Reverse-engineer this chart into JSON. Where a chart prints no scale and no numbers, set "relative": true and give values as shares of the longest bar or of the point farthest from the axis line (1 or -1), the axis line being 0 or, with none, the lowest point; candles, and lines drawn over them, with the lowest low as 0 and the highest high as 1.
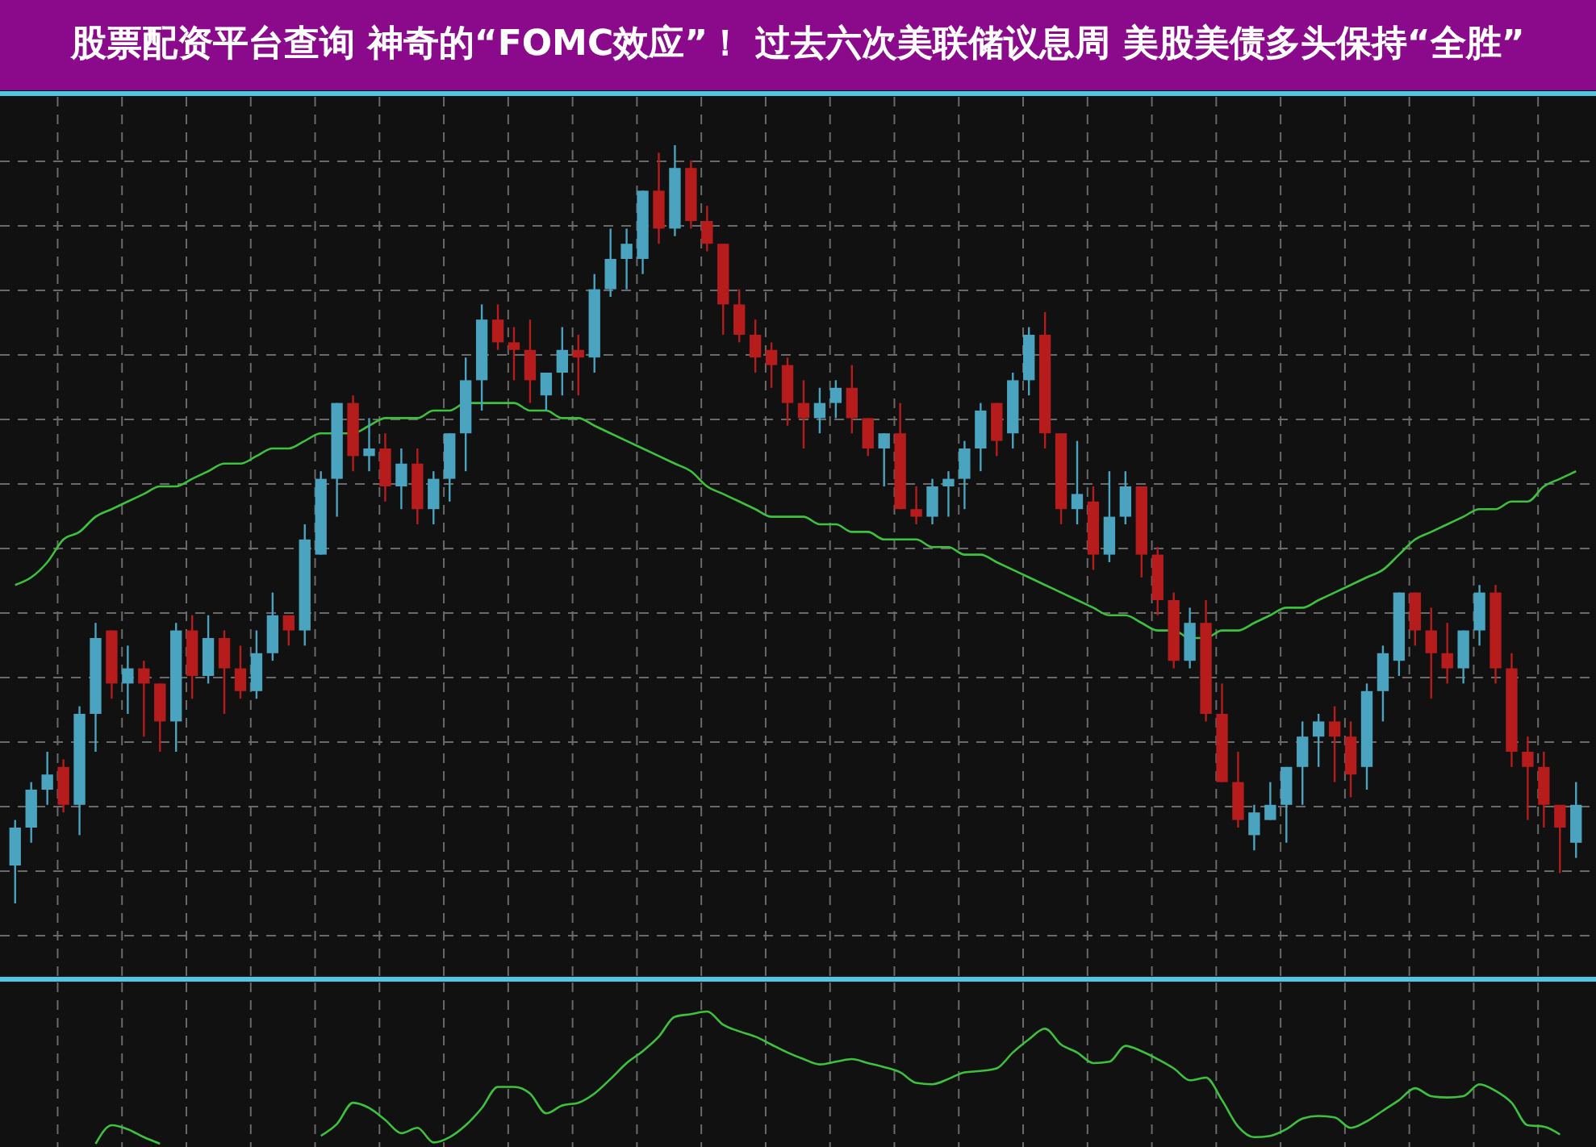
{
  "chart_data": [
    {
      "type": "candlestick",
      "title": "股票配资平台查询 神奇的“FOMC效应”！ 过去六次美联储议息周 美股美债多头保持“全胜”",
      "relative": true,
      "grid": true,
      "categories": [
        null,
        null,
        null,
        null,
        null,
        null,
        null,
        null,
        null,
        null,
        null,
        null,
        null,
        null,
        null,
        null,
        null,
        null,
        null,
        null,
        null,
        null,
        null,
        null,
        null,
        null,
        null,
        null,
        null,
        null,
        null,
        null,
        null,
        null,
        null,
        null,
        null,
        null,
        null,
        null,
        null,
        null,
        null,
        null,
        null,
        null,
        null,
        null,
        null,
        null,
        null,
        null,
        null,
        null,
        null,
        null,
        null,
        null,
        null,
        null,
        null,
        null,
        null,
        null,
        null,
        null,
        null,
        null,
        null,
        null,
        null,
        null,
        null,
        null,
        null,
        null,
        null,
        null,
        null,
        null,
        null,
        null,
        null,
        null,
        null,
        null,
        null,
        null,
        null,
        null,
        null,
        null,
        null,
        null,
        null,
        null,
        null,
        null
      ],
      "ohlc": [
        [
          0.05,
          0.11,
          0,
          0.1
        ],
        [
          0.1,
          0.16,
          0.08,
          0.15
        ],
        [
          0.15,
          0.2,
          0.13,
          0.17
        ],
        [
          0.18,
          0.19,
          0.12,
          0.13
        ],
        [
          0.13,
          0.26,
          0.09,
          0.25
        ],
        [
          0.25,
          0.37,
          0.2,
          0.35
        ],
        [
          0.36,
          0.36,
          0.27,
          0.29
        ],
        [
          0.29,
          0.34,
          0.25,
          0.31
        ],
        [
          0.31,
          0.32,
          0.22,
          0.29
        ],
        [
          0.29,
          0.29,
          0.2,
          0.24
        ],
        [
          0.24,
          0.37,
          0.2,
          0.36
        ],
        [
          0.36,
          0.38,
          0.27,
          0.3
        ],
        [
          0.3,
          0.38,
          0.29,
          0.35
        ],
        [
          0.35,
          0.36,
          0.25,
          0.31
        ],
        [
          0.31,
          0.34,
          0.27,
          0.28
        ],
        [
          0.28,
          0.36,
          0.27,
          0.33
        ],
        [
          0.33,
          0.41,
          0.32,
          0.38
        ],
        [
          0.38,
          0.38,
          0.34,
          0.36
        ],
        [
          0.36,
          0.5,
          0.34,
          0.48
        ],
        [
          0.46,
          0.57,
          0.46,
          0.56
        ],
        [
          0.56,
          0.66,
          0.51,
          0.66
        ],
        [
          0.66,
          0.67,
          0.57,
          0.59
        ],
        [
          0.59,
          0.64,
          0.57,
          0.6
        ],
        [
          0.6,
          0.62,
          0.53,
          0.55
        ],
        [
          0.55,
          0.6,
          0.52,
          0.58
        ],
        [
          0.58,
          0.6,
          0.5,
          0.52
        ],
        [
          0.52,
          0.57,
          0.5,
          0.56
        ],
        [
          0.56,
          0.62,
          0.53,
          0.62
        ],
        [
          0.62,
          0.72,
          0.57,
          0.69
        ],
        [
          0.69,
          0.79,
          0.65,
          0.77
        ],
        [
          0.77,
          0.79,
          0.73,
          0.74
        ],
        [
          0.74,
          0.76,
          0.69,
          0.73
        ],
        [
          0.73,
          0.77,
          0.66,
          0.69
        ],
        [
          0.67,
          0.7,
          0.65,
          0.7
        ],
        [
          0.7,
          0.76,
          0.67,
          0.73
        ],
        [
          0.73,
          0.75,
          0.67,
          0.72
        ],
        [
          0.72,
          0.83,
          0.7,
          0.81
        ],
        [
          0.81,
          0.89,
          0.8,
          0.85
        ],
        [
          0.85,
          0.89,
          0.81,
          0.87
        ],
        [
          0.85,
          0.94,
          0.83,
          0.94
        ],
        [
          0.94,
          0.99,
          0.87,
          0.89
        ],
        [
          0.89,
          1,
          0.88,
          0.97
        ],
        [
          0.97,
          0.98,
          0.89,
          0.9
        ],
        [
          0.9,
          0.92,
          0.86,
          0.87
        ],
        [
          0.87,
          0.87,
          0.75,
          0.79
        ],
        [
          0.79,
          0.81,
          0.74,
          0.75
        ],
        [
          0.75,
          0.77,
          0.7,
          0.72
        ],
        [
          0.73,
          0.74,
          0.68,
          0.71
        ],
        [
          0.71,
          0.72,
          0.63,
          0.66
        ],
        [
          0.66,
          0.69,
          0.6,
          0.64
        ],
        [
          0.64,
          0.68,
          0.62,
          0.66
        ],
        [
          0.66,
          0.69,
          0.64,
          0.68
        ],
        [
          0.68,
          0.71,
          0.62,
          0.64
        ],
        [
          0.64,
          0.64,
          0.59,
          0.6
        ],
        [
          0.6,
          0.62,
          0.55,
          0.62
        ],
        [
          0.62,
          0.66,
          0.52,
          0.52
        ],
        [
          0.52,
          0.55,
          0.5,
          0.51
        ],
        [
          0.51,
          0.56,
          0.5,
          0.55
        ],
        [
          0.55,
          0.57,
          0.51,
          0.56
        ],
        [
          0.56,
          0.61,
          0.52,
          0.6
        ],
        [
          0.6,
          0.66,
          0.57,
          0.65
        ],
        [
          0.66,
          0.66,
          0.59,
          0.61
        ],
        [
          0.62,
          0.7,
          0.6,
          0.69
        ],
        [
          0.69,
          0.76,
          0.67,
          0.75
        ],
        [
          0.75,
          0.78,
          0.6,
          0.62
        ],
        [
          0.62,
          0.62,
          0.5,
          0.52
        ],
        [
          0.52,
          0.61,
          0.5,
          0.54
        ],
        [
          0.53,
          0.55,
          0.44,
          0.46
        ],
        [
          0.46,
          0.57,
          0.45,
          0.51
        ],
        [
          0.51,
          0.57,
          0.5,
          0.55
        ],
        [
          0.55,
          0.55,
          0.43,
          0.46
        ],
        [
          0.46,
          0.47,
          0.38,
          0.4
        ],
        [
          0.4,
          0.41,
          0.31,
          0.32
        ],
        [
          0.32,
          0.39,
          0.31,
          0.37
        ],
        [
          0.37,
          0.4,
          0.24,
          0.25
        ],
        [
          0.25,
          0.29,
          0.16,
          0.16
        ],
        [
          0.16,
          0.2,
          0.1,
          0.11
        ],
        [
          0.09,
          0.13,
          0.07,
          0.12
        ],
        [
          0.11,
          0.16,
          0.11,
          0.13
        ],
        [
          0.13,
          0.18,
          0.08,
          0.18
        ],
        [
          0.18,
          0.24,
          0.13,
          0.22
        ],
        [
          0.22,
          0.25,
          0.18,
          0.24
        ],
        [
          0.24,
          0.26,
          0.16,
          0.22
        ],
        [
          0.22,
          0.24,
          0.14,
          0.17
        ],
        [
          0.18,
          0.29,
          0.15,
          0.28
        ],
        [
          0.28,
          0.34,
          0.24,
          0.33
        ],
        [
          0.32,
          0.41,
          0.3,
          0.41
        ],
        [
          0.41,
          0.41,
          0.34,
          0.36
        ],
        [
          0.36,
          0.39,
          0.27,
          0.33
        ],
        [
          0.33,
          0.37,
          0.29,
          0.31
        ],
        [
          0.31,
          0.36,
          0.29,
          0.36
        ],
        [
          0.36,
          0.42,
          0.34,
          0.41
        ],
        [
          0.41,
          0.42,
          0.29,
          0.31
        ],
        [
          0.31,
          0.33,
          0.18,
          0.2
        ],
        [
          0.2,
          0.22,
          0.11,
          0.18
        ],
        [
          0.18,
          0.2,
          0.1,
          0.13
        ],
        [
          0.13,
          0.13,
          0.04,
          0.1
        ],
        [
          0.08,
          0.16,
          0.06,
          0.13
        ]
      ],
      "colors": [
        "#4aa3bf",
        "#4aa3bf",
        "#4aa3bf",
        "#b71c1c",
        "#4aa3bf",
        "#4aa3bf",
        "#b71c1c",
        "#4aa3bf",
        "#b71c1c",
        "#b71c1c",
        "#4aa3bf",
        "#b71c1c",
        "#4aa3bf",
        "#b71c1c",
        "#b71c1c",
        "#4aa3bf",
        "#4aa3bf",
        "#b71c1c",
        "#4aa3bf",
        "#4aa3bf",
        "#4aa3bf",
        "#b71c1c",
        "#4aa3bf",
        "#b71c1c",
        "#4aa3bf",
        "#b71c1c",
        "#4aa3bf",
        "#4aa3bf",
        "#4aa3bf",
        "#4aa3bf",
        "#b71c1c",
        "#b71c1c",
        "#b71c1c",
        "#4aa3bf",
        "#4aa3bf",
        "#b71c1c",
        "#4aa3bf",
        "#4aa3bf",
        "#4aa3bf",
        "#4aa3bf",
        "#b71c1c",
        "#4aa3bf",
        "#b71c1c",
        "#b71c1c",
        "#b71c1c",
        "#b71c1c",
        "#b71c1c",
        "#b71c1c",
        "#b71c1c",
        "#b71c1c",
        "#4aa3bf",
        "#4aa3bf",
        "#b71c1c",
        "#b71c1c",
        "#4aa3bf",
        "#b71c1c",
        "#b71c1c",
        "#4aa3bf",
        "#4aa3bf",
        "#4aa3bf",
        "#4aa3bf",
        "#b71c1c",
        "#4aa3bf",
        "#4aa3bf",
        "#b71c1c",
        "#b71c1c",
        "#4aa3bf",
        "#b71c1c",
        "#4aa3bf",
        "#4aa3bf",
        "#b71c1c",
        "#b71c1c",
        "#b71c1c",
        "#4aa3bf",
        "#b71c1c",
        "#b71c1c",
        "#b71c1c",
        "#4aa3bf",
        "#4aa3bf",
        "#4aa3bf",
        "#4aa3bf",
        "#4aa3bf",
        "#b71c1c",
        "#b71c1c",
        "#4aa3bf",
        "#4aa3bf",
        "#4aa3bf",
        "#b71c1c",
        "#b71c1c",
        "#b71c1c",
        "#4aa3bf",
        "#4aa3bf",
        "#b71c1c",
        "#b71c1c",
        "#b71c1c",
        "#b71c1c",
        "#b71c1c",
        "#4aa3bf"
      ],
      "series": [
        {
          "type": "line",
          "color": "#3cc23c",
          "values": [
            0.42,
            0.43,
            0.45,
            0.48,
            0.49,
            0.51,
            0.52,
            0.53,
            0.54,
            0.55,
            0.55,
            0.56,
            0.57,
            0.58,
            0.58,
            0.59,
            0.6,
            0.6,
            0.61,
            0.62,
            0.62,
            0.62,
            0.63,
            0.64,
            0.64,
            0.64,
            0.65,
            0.65,
            0.66,
            0.66,
            0.66,
            0.66,
            0.65,
            0.65,
            0.64,
            0.64,
            0.63,
            0.62,
            0.61,
            0.6,
            0.59,
            0.58,
            0.57,
            0.55,
            0.54,
            0.53,
            0.52,
            0.51,
            0.51,
            0.51,
            0.5,
            0.5,
            0.49,
            0.49,
            0.48,
            0.48,
            0.48,
            0.47,
            0.47,
            0.46,
            0.46,
            0.45,
            0.44,
            0.43,
            0.42,
            0.41,
            0.4,
            0.39,
            0.38,
            0.38,
            0.37,
            0.36,
            0.36,
            0.35,
            0.35,
            0.36,
            0.36,
            0.37,
            0.38,
            0.39,
            0.39,
            0.4,
            0.41,
            0.42,
            0.43,
            0.44,
            0.46,
            0.48,
            0.49,
            0.5,
            0.51,
            0.52,
            0.52,
            0.53,
            0.53,
            0.55,
            0.56,
            0.57
          ]
        }
      ]
    },
    {
      "type": "line",
      "relative": true,
      "grid": "x",
      "categories": [
        null,
        null,
        null,
        null,
        null,
        null,
        null,
        null,
        null,
        null,
        null,
        null,
        null,
        null,
        null,
        null,
        null,
        null,
        null,
        null,
        null,
        null,
        null,
        null,
        null,
        null,
        null,
        null,
        null,
        null,
        null,
        null,
        null,
        null,
        null,
        null,
        null,
        null,
        null,
        null,
        null,
        null,
        null,
        null,
        null,
        null,
        null,
        null,
        null,
        null,
        null,
        null,
        null,
        null,
        null,
        null,
        null,
        null,
        null,
        null,
        null,
        null,
        null,
        null,
        null,
        null,
        null,
        null,
        null,
        null,
        null,
        null,
        null,
        null,
        null,
        null,
        null,
        null,
        null,
        null,
        null,
        null,
        null,
        null,
        null,
        null,
        null,
        null,
        null,
        null,
        null,
        null,
        null,
        null,
        null,
        null,
        null,
        null
      ],
      "series": [
        {
          "color": "#3cc23c",
          "values": [
            null,
            null,
            null,
            null,
            null,
            0,
            0.14,
            0.11,
            0.05,
            0,
            null,
            null,
            null,
            null,
            null,
            null,
            null,
            null,
            null,
            0.06,
            0.15,
            0.31,
            0.27,
            0.18,
            0.08,
            0.12,
            0.01,
            0.05,
            0.14,
            0.27,
            0.43,
            0.43,
            0.38,
            0.23,
            0.29,
            0.31,
            0.38,
            0.49,
            0.61,
            0.7,
            0.81,
            0.96,
            0.98,
            1,
            0.9,
            0.85,
            0.81,
            0.75,
            0.69,
            0.64,
            0.6,
            0.62,
            0.64,
            0.61,
            0.58,
            0.54,
            0.46,
            0.45,
            0.49,
            0.54,
            0.55,
            0.57,
            0.69,
            0.79,
            0.87,
            0.75,
            0.69,
            0.61,
            0.62,
            0.74,
            0.7,
            0.64,
            0.57,
            0.48,
            0.5,
            0.33,
            0.13,
            0.05,
            0.06,
            0.11,
            0.19,
            0.21,
            0.2,
            0.12,
            0.17,
            0.25,
            0.33,
            0.42,
            0.36,
            0.35,
            0.36,
            0.45,
            0.4,
            0.31,
            0.14,
            0.13,
            0.07,
            null
          ]
        }
      ]
    }
  ]
}
